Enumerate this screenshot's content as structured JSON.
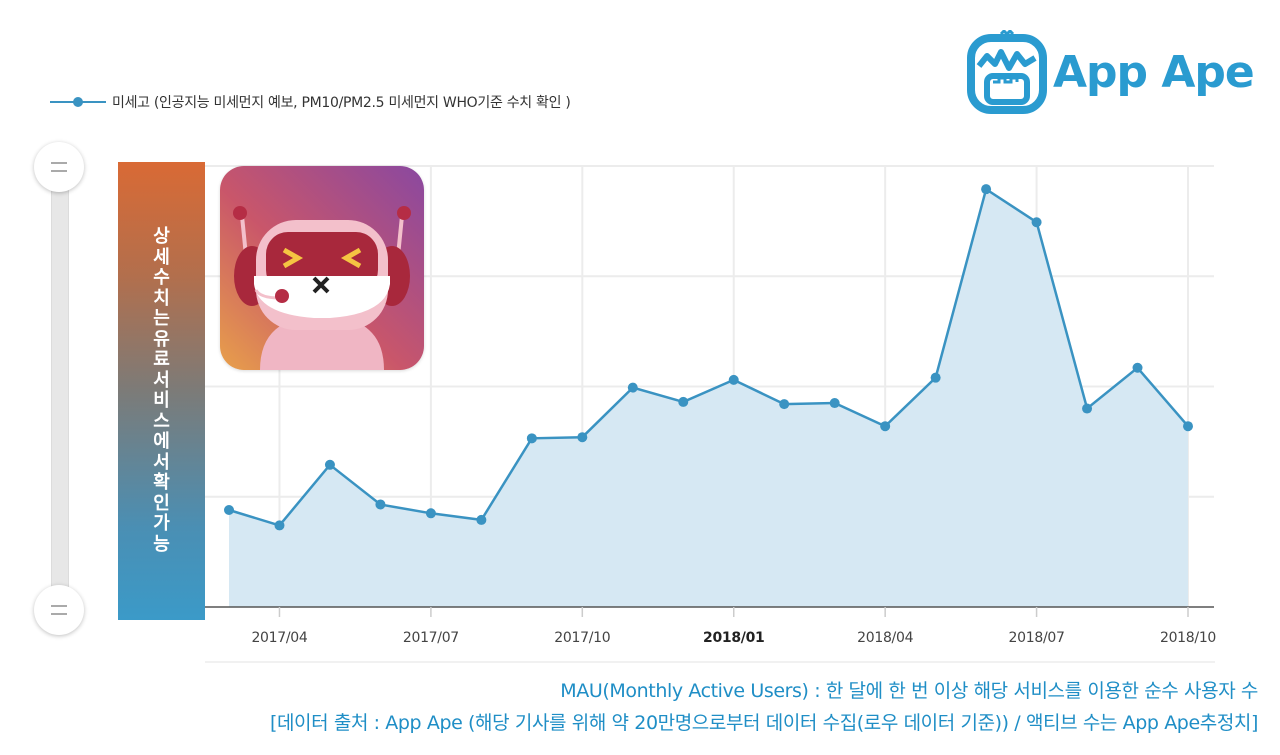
{
  "logo": {
    "text": "App Ape",
    "icon": "app-ape-monkey-icon",
    "color": "#2a9bd0"
  },
  "legend": {
    "series_label": "미세고 (인공지능 미세먼지 예보, PM10/PM2.5 미세먼지 WHO기준 수치 확인 )",
    "color": "#3a93c2"
  },
  "banner": {
    "text": "상세 수치는 유료 서비스에서 확인 가능"
  },
  "app_icon": {
    "name": "misego-robot-mask-icon"
  },
  "scrollbar": {
    "top_knob": "range-handle-top",
    "bottom_knob": "range-handle-bottom"
  },
  "footer": {
    "line1": "MAU(Monthly Active Users) : 한 달에 한 번 이상 해당 서비스를 이용한 순수 사용자 수",
    "line2": "[데이터 출처 : App Ape (해당 기사를 위해 약 20만명으로부터 데이터 수집(로우 데이터 기준)) / 액티브 수는 App Ape추정치]",
    "color": "#1f8ec6"
  },
  "chart_data": {
    "type": "area",
    "title": "",
    "xlabel": "",
    "ylabel": "",
    "legend": [
      "미세고 (인공지능 미세먼지 예보, PM10/PM2.5 미세먼지 WHO기준 수치 확인 )"
    ],
    "legend_position": "top-left",
    "grid": true,
    "y_tick_labels_hidden": true,
    "ylim": [
      0,
      4
    ],
    "x_tick_labels": [
      "2017/04",
      "2017/07",
      "2017/10",
      "2018/01",
      "2018/04",
      "2018/07",
      "2018/10"
    ],
    "x": [
      "2017/03",
      "2017/04",
      "2017/05",
      "2017/06",
      "2017/07",
      "2017/08",
      "2017/09",
      "2017/10",
      "2017/11",
      "2017/12",
      "2018/01",
      "2018/02",
      "2018/03",
      "2018/04",
      "2018/05",
      "2018/06",
      "2018/07",
      "2018/08",
      "2018/09",
      "2018/10"
    ],
    "series": [
      {
        "name": "미세고",
        "color": "#3a93c2",
        "fill": "#d6e8f3",
        "values": [
          0.88,
          0.74,
          1.29,
          0.93,
          0.85,
          0.79,
          1.53,
          1.54,
          1.99,
          1.86,
          2.06,
          1.84,
          1.85,
          1.64,
          2.08,
          3.79,
          3.49,
          1.8,
          2.17,
          1.64
        ]
      }
    ]
  }
}
